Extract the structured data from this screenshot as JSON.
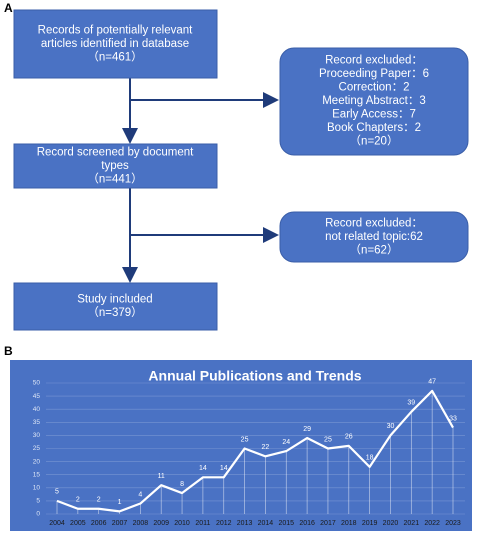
{
  "panels": [
    "A",
    "B"
  ],
  "flow": {
    "box1": [
      "Records of potentially relevant",
      "articles identified in database",
      "（n=461）"
    ],
    "excluded1": [
      "Record excluded：",
      "Proceeding Paper：6",
      "Correction：2",
      "Meeting Abstract：3",
      "Early Access：7",
      "Book Chapters：2",
      "（n=20）"
    ],
    "box2": [
      "Record screened by document",
      "types",
      "（n=441）"
    ],
    "excluded2": [
      "Record excluded：",
      "not related topic:62",
      "（n=62）"
    ],
    "box3": [
      "Study included",
      "（n=379）"
    ]
  },
  "chart_data": {
    "type": "line",
    "title": "Annual Publications and Trends",
    "categories": [
      "2004",
      "2005",
      "2006",
      "2007",
      "2008",
      "2009",
      "2010",
      "2011",
      "2012",
      "2013",
      "2014",
      "2015",
      "2016",
      "2017",
      "2018",
      "2019",
      "2020",
      "2021",
      "2022",
      "2023"
    ],
    "values": [
      5,
      2,
      2,
      1,
      4,
      11,
      8,
      14,
      14,
      25,
      22,
      24,
      29,
      25,
      26,
      18,
      30,
      39,
      47,
      33
    ],
    "color": "#ffffff",
    "background": "#4a72c4",
    "ylim": [
      0,
      50
    ],
    "yticks": [
      0,
      5,
      10,
      15,
      20,
      25,
      30,
      35,
      40,
      45,
      50
    ],
    "grid": true
  }
}
